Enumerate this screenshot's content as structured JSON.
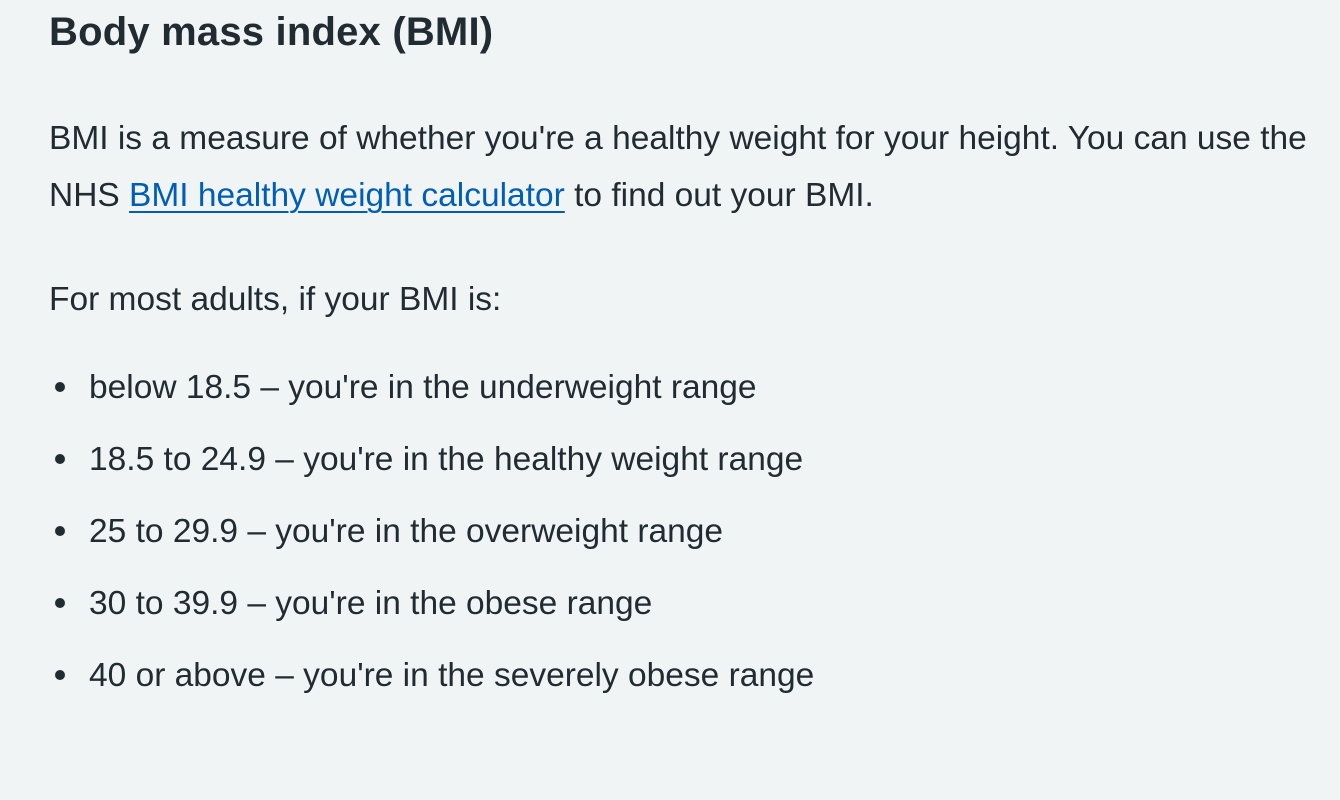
{
  "section": {
    "heading": "Body mass index (BMI)",
    "intro_before_link": "BMI is a measure of whether you're a healthy weight for your height. You can use the NHS ",
    "intro_link": "BMI healthy weight calculator",
    "intro_after_link": " to find out your BMI.",
    "lead": "For most adults, if your BMI is:",
    "ranges": [
      "below 18.5 – you're in the underweight range",
      "18.5 to 24.9 – you're in the healthy weight range",
      "25 to 29.9 – you're in the overweight range",
      "30 to 39.9 – you're in the obese range",
      "40 or above – you're in the severely obese range"
    ]
  },
  "colors": {
    "background": "#f0f4f5",
    "text": "#212b32",
    "link": "#005eb8"
  }
}
